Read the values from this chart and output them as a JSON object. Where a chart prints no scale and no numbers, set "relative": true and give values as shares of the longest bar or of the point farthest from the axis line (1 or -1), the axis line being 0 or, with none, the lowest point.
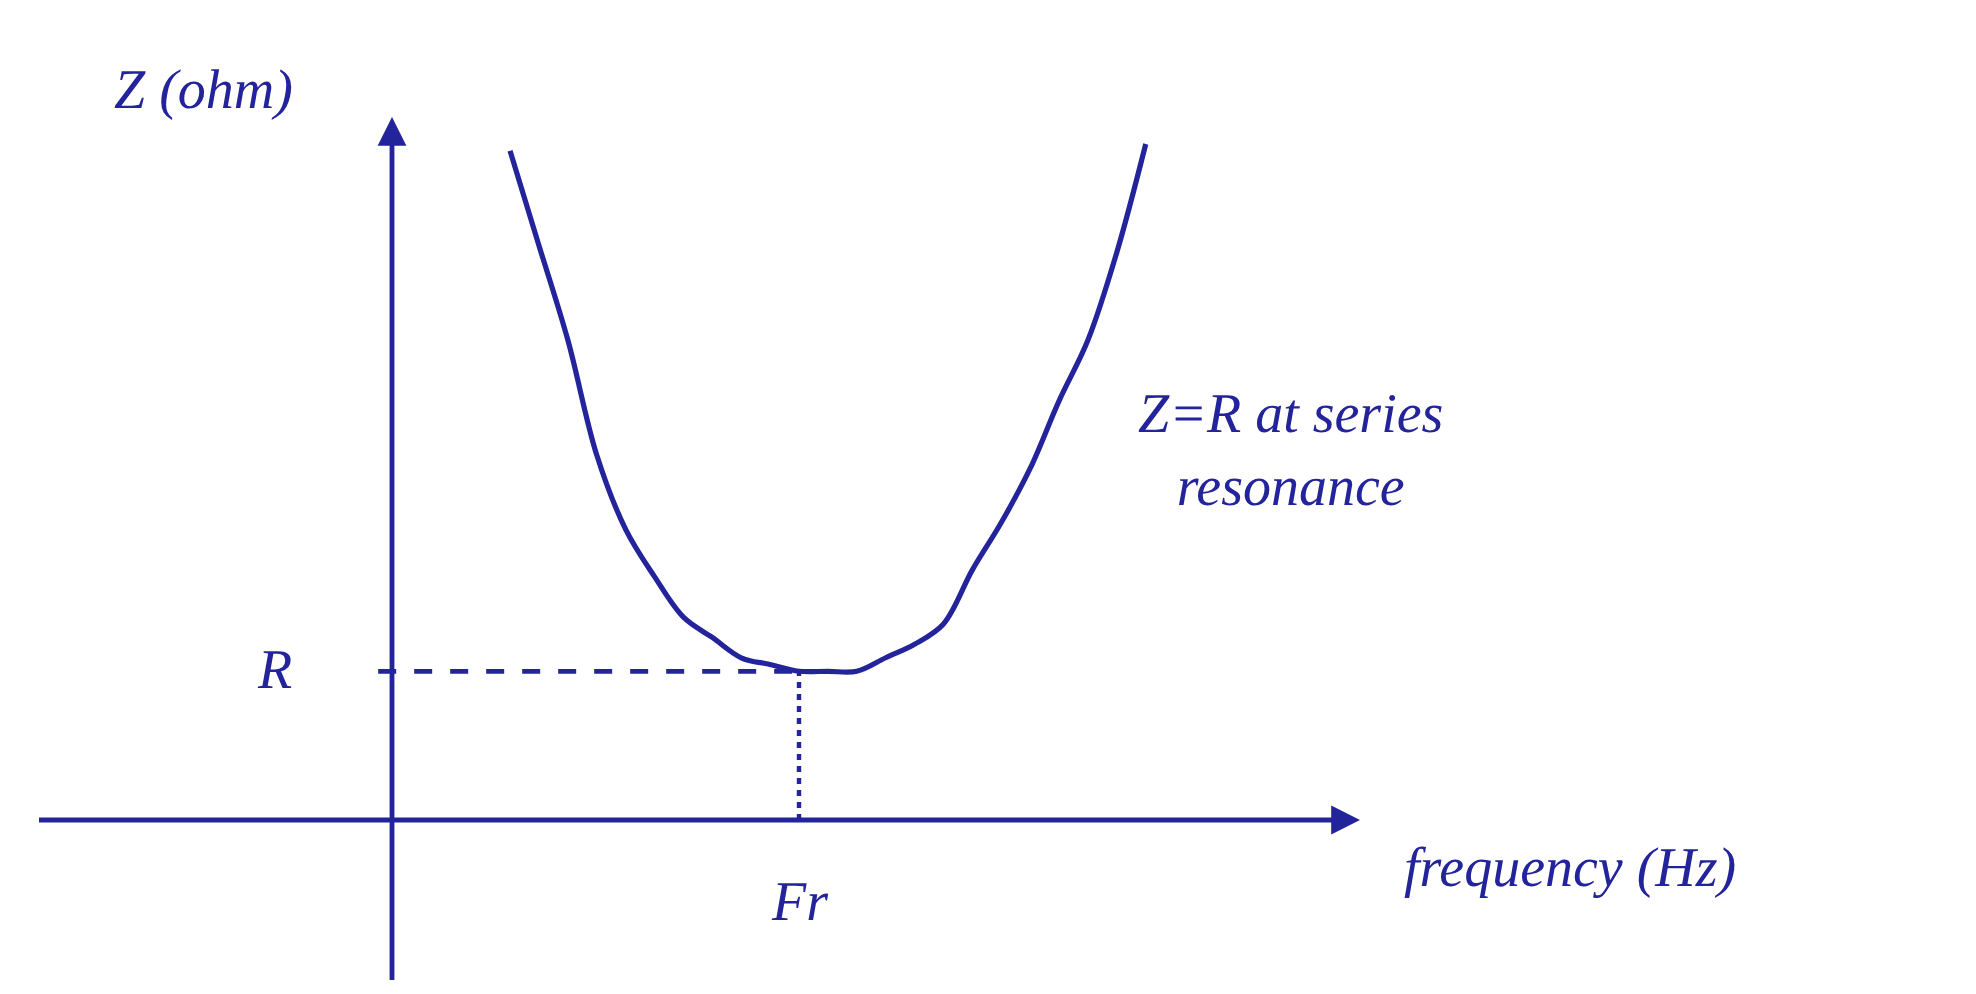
{
  "chart_data": {
    "type": "line",
    "relative": true,
    "xlabel": "frequency (Hz)",
    "ylabel": "Z (ohm)",
    "categories": [
      null,
      null,
      null,
      null,
      null,
      null,
      null,
      null,
      null,
      null,
      null,
      null,
      null,
      null,
      null,
      null,
      null,
      null,
      null,
      null,
      null,
      null,
      null
    ],
    "series": [
      {
        "color": "#23239b",
        "values": [
          0.99,
          0.85,
          0.71,
          0.54,
          0.43,
          0.36,
          0.3,
          0.27,
          0.24,
          0.23,
          0.22,
          0.22,
          0.22,
          0.24,
          0.26,
          0.29,
          0.37,
          0.44,
          0.52,
          0.62,
          0.71,
          0.84,
          1.0
        ]
      }
    ],
    "ref_lines": [
      {
        "axis": "y",
        "value": 0.22,
        "label": "R",
        "line_style": "dashed",
        "color": "#23239b"
      }
    ],
    "annotations": [
      "Z=R at series resonance",
      {
        "text": "Fr",
        "y": 0.22
      }
    ]
  }
}
